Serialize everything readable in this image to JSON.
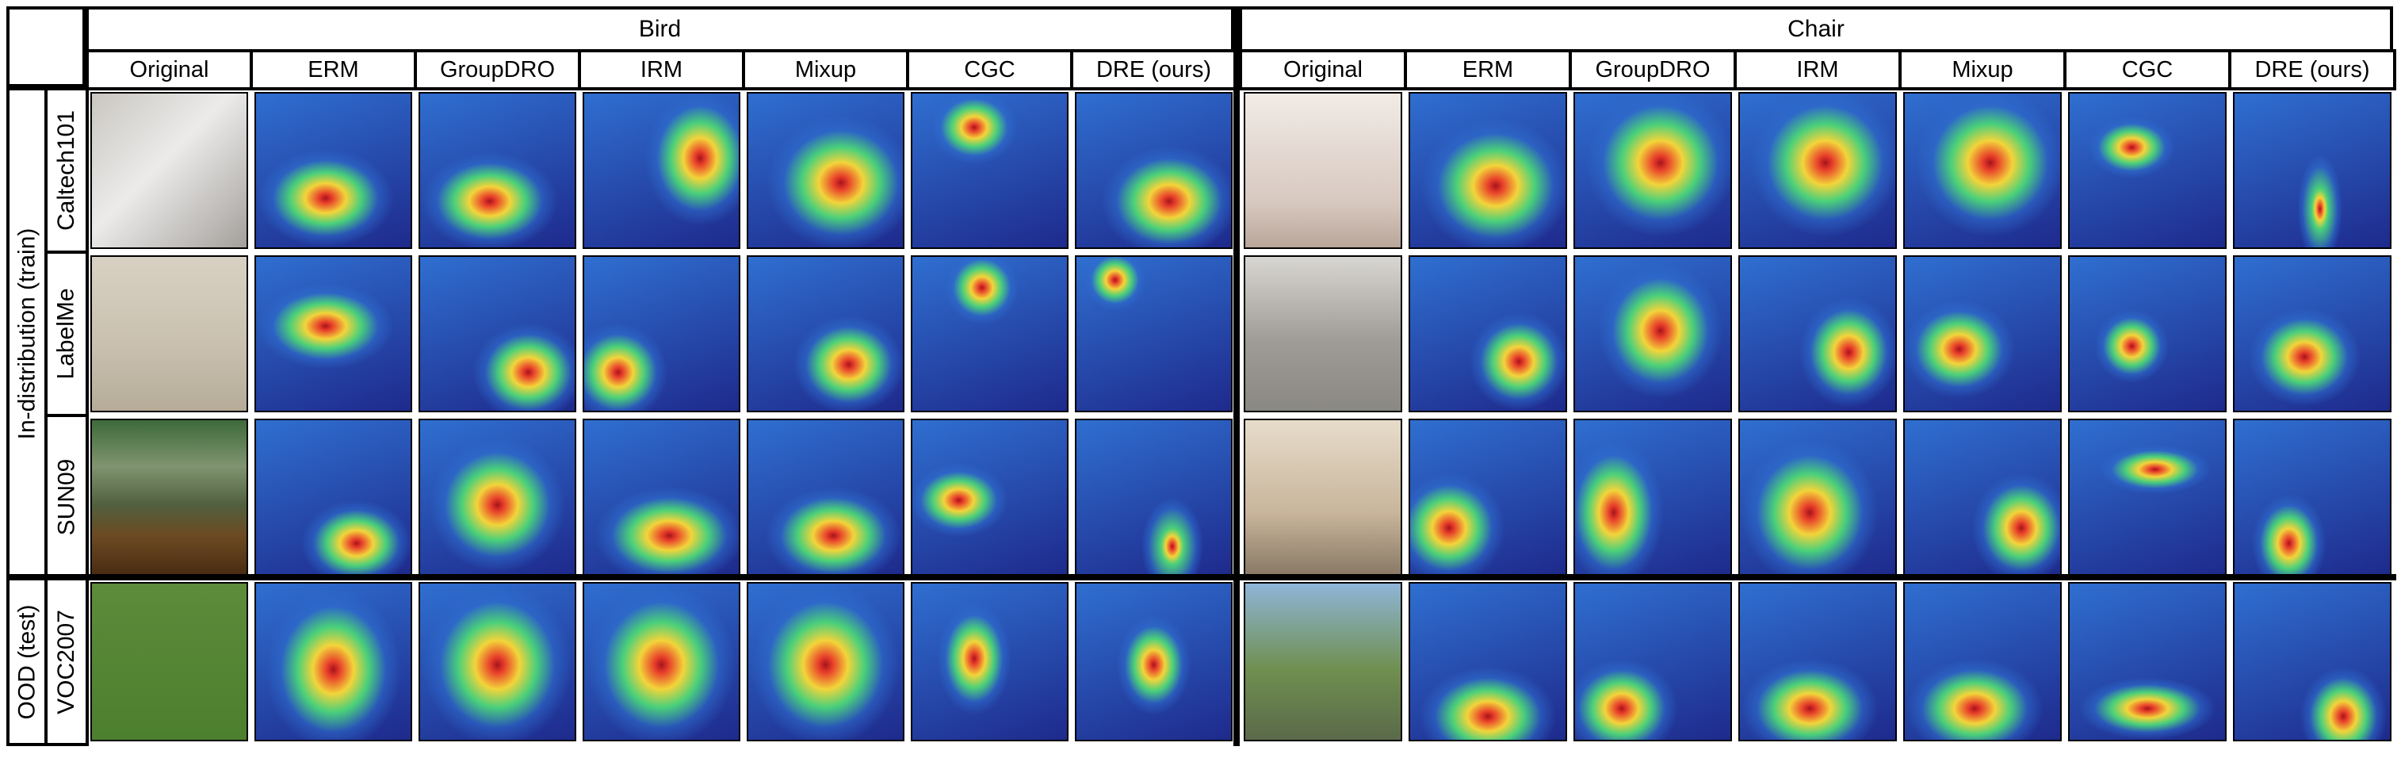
{
  "groups": [
    {
      "name": "Bird",
      "methods": [
        "Original",
        "ERM",
        "GroupDRO",
        "IRM",
        "Mixup",
        "CGC",
        "DRE (ours)"
      ]
    },
    {
      "name": "Chair",
      "methods": [
        "Original",
        "ERM",
        "GroupDRO",
        "IRM",
        "Mixup",
        "CGC",
        "DRE (ours)"
      ]
    }
  ],
  "row_groups": [
    {
      "label": "In-distribution (train)",
      "domains": [
        "Caltech101",
        "LabelMe",
        "SUN09"
      ]
    },
    {
      "label": "OOD (test)",
      "domains": [
        "VOC2007"
      ]
    }
  ],
  "heatmap_colors": {
    "cold": "#1e2a8c",
    "cool": "#2f6fd0",
    "mid": "#4ad07a",
    "warm": "#f3d43a",
    "hot": "#e8402a",
    "core": "#a8121c"
  }
}
